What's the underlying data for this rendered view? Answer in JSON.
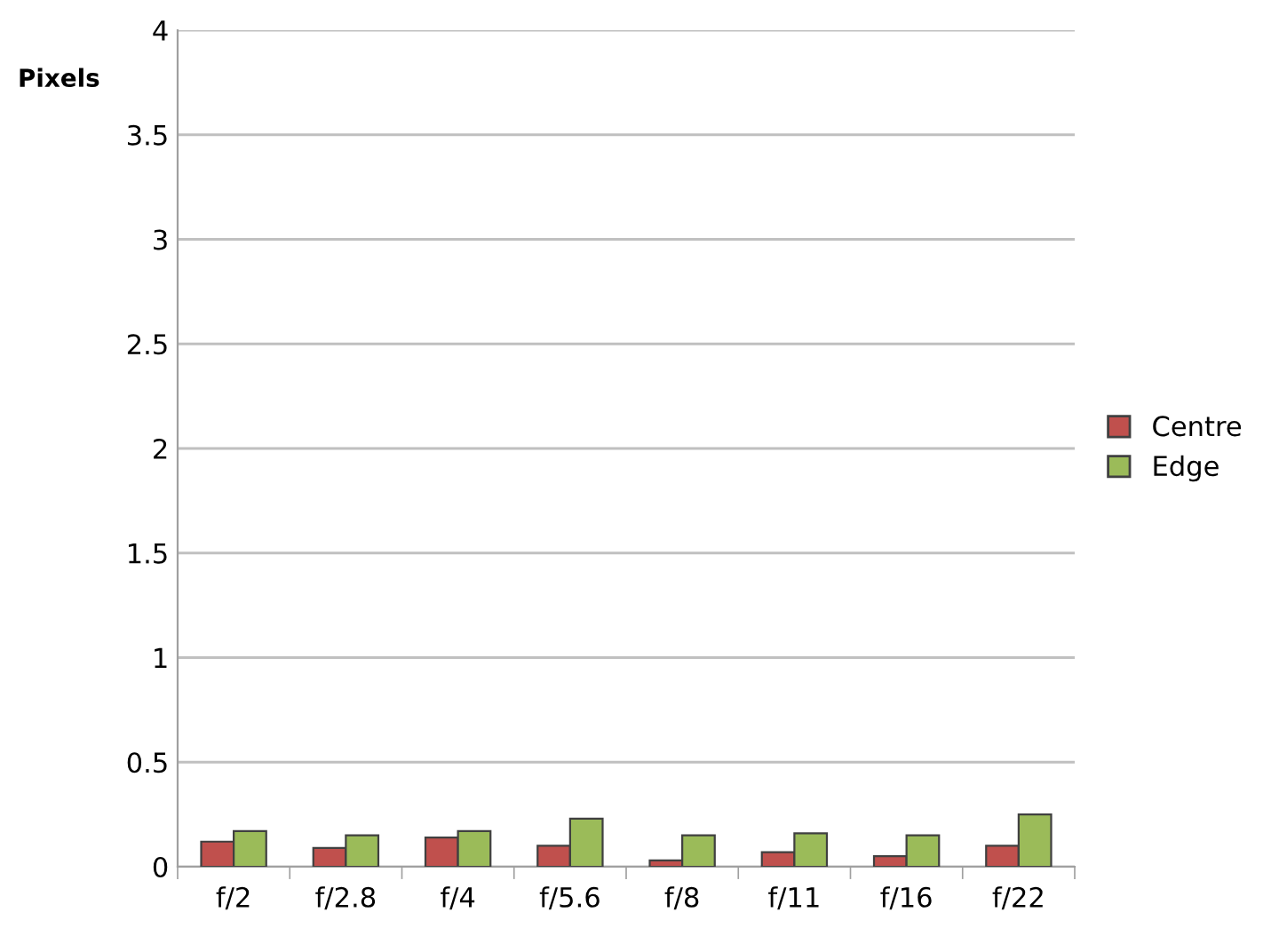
{
  "chart_data": {
    "type": "bar",
    "ylabel": "Pixels",
    "categories": [
      "f/2",
      "f/2.8",
      "f/4",
      "f/5.6",
      "f/8",
      "f/11",
      "f/16",
      "f/22"
    ],
    "series": [
      {
        "name": "Centre",
        "color": "#c0504d",
        "values": [
          0.12,
          0.09,
          0.14,
          0.1,
          0.03,
          0.07,
          0.05,
          0.1
        ]
      },
      {
        "name": "Edge",
        "color": "#9bbb59",
        "values": [
          0.17,
          0.15,
          0.17,
          0.23,
          0.15,
          0.16,
          0.15,
          0.25
        ]
      }
    ],
    "ylim": [
      0,
      4
    ],
    "yticks": [
      0,
      0.5,
      1,
      1.5,
      2,
      2.5,
      3,
      3.5,
      4
    ],
    "grid": "y",
    "legend": "right"
  }
}
